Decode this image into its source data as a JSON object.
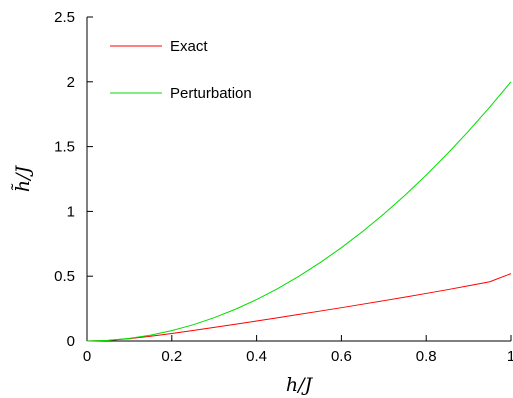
{
  "chart_data": {
    "type": "line",
    "xlabel": "h/J",
    "ylabel": "h̃/J",
    "xlim": [
      0,
      1
    ],
    "ylim": [
      0,
      2.5
    ],
    "x_ticks": [
      "0",
      "0.2",
      "0.4",
      "0.6",
      "0.8",
      "1"
    ],
    "y_ticks": [
      "0",
      "0.5",
      "1",
      "1.5",
      "2",
      "2.5"
    ],
    "grid": false,
    "legend_position": "top-left",
    "x": [
      0,
      0.05,
      0.1,
      0.15,
      0.2,
      0.25,
      0.3,
      0.35,
      0.4,
      0.45,
      0.5,
      0.55,
      0.6,
      0.65,
      0.7,
      0.75,
      0.8,
      0.85,
      0.9,
      0.95,
      1.0
    ],
    "series": [
      {
        "name": "Exact",
        "color": "#ff0000",
        "values": [
          0,
          0.005,
          0.018,
          0.037,
          0.058,
          0.081,
          0.105,
          0.129,
          0.154,
          0.179,
          0.205,
          0.231,
          0.257,
          0.284,
          0.311,
          0.339,
          0.367,
          0.396,
          0.426,
          0.457,
          0.52
        ]
      },
      {
        "name": "Perturbation",
        "color": "#00dd00",
        "values": [
          0,
          0.005,
          0.02,
          0.045,
          0.08,
          0.125,
          0.18,
          0.245,
          0.32,
          0.405,
          0.5,
          0.605,
          0.72,
          0.845,
          0.98,
          1.125,
          1.28,
          1.445,
          1.62,
          1.805,
          2.0
        ]
      }
    ]
  }
}
